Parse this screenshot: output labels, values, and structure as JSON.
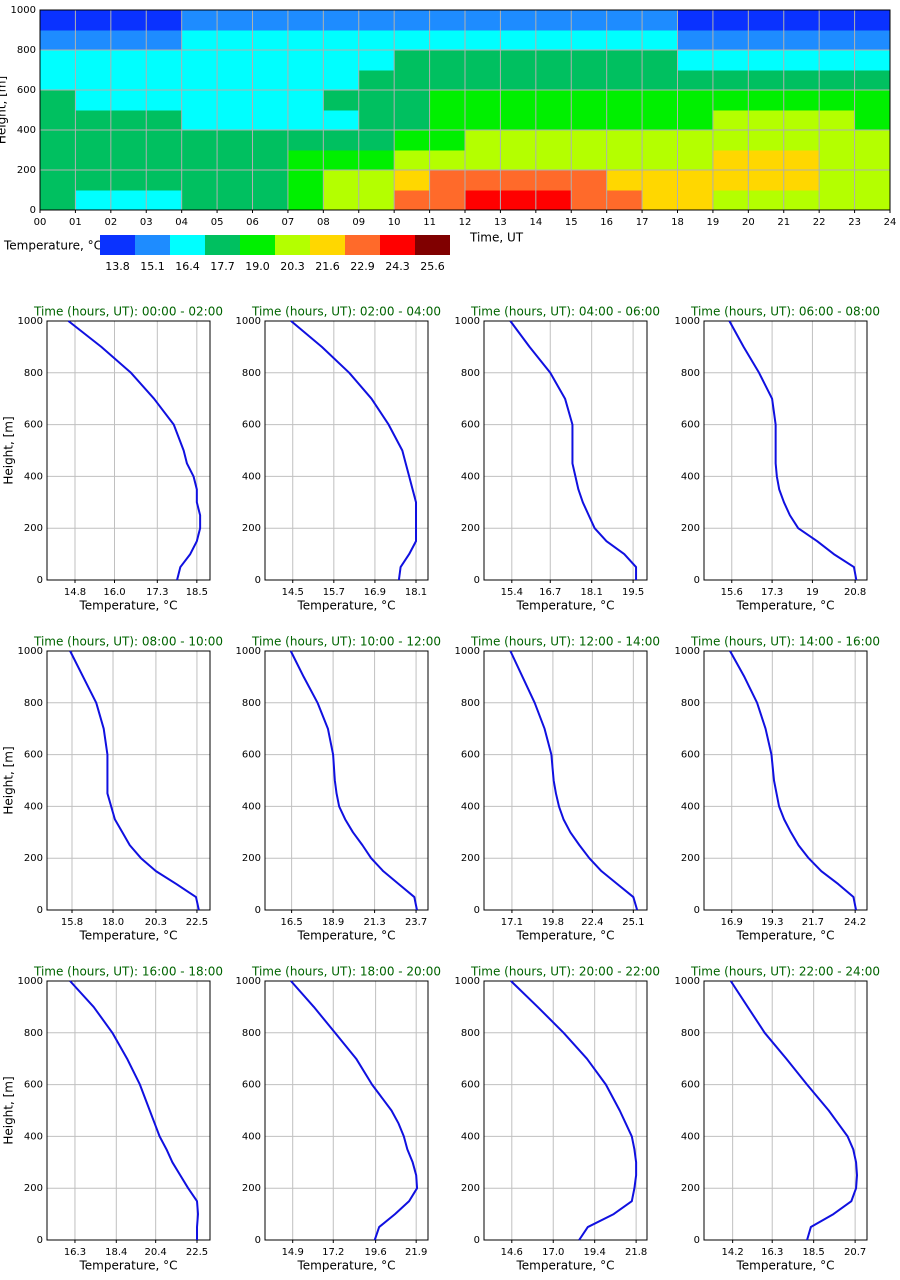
{
  "chart_data": [
    {
      "type": "heatmap",
      "xlabel": "Time, UT",
      "ylabel": "Height, [m]",
      "xlim": [
        0,
        24
      ],
      "ylim": [
        0,
        1000
      ],
      "xticks": [
        {
          "value": 0,
          "label": "00"
        },
        {
          "value": 1,
          "label": "01"
        },
        {
          "value": 2,
          "label": "02"
        },
        {
          "value": 3,
          "label": "03"
        },
        {
          "value": 4,
          "label": "04"
        },
        {
          "value": 5,
          "label": "05"
        },
        {
          "value": 6,
          "label": "06"
        },
        {
          "value": 7,
          "label": "07"
        },
        {
          "value": 8,
          "label": "08"
        },
        {
          "value": 9,
          "label": "09"
        },
        10,
        11,
        12,
        13,
        14,
        15,
        16,
        17,
        18,
        19,
        20,
        21,
        22,
        23,
        24
      ],
      "yticks": [
        0,
        200,
        400,
        600,
        800,
        1000
      ],
      "grid": true,
      "z": [
        [
          17.7,
          16.4,
          16.4,
          16.4,
          17.7,
          17.7,
          17.7,
          19.0,
          20.3,
          20.3,
          22.9,
          22.9,
          24.3,
          24.3,
          24.3,
          22.9,
          22.9,
          21.6,
          21.6,
          20.3,
          20.3,
          20.3,
          20.3,
          20.3
        ],
        [
          17.7,
          17.7,
          17.7,
          17.7,
          17.7,
          17.7,
          17.7,
          19.0,
          20.3,
          20.3,
          21.6,
          22.9,
          22.9,
          22.9,
          22.9,
          22.9,
          21.6,
          21.6,
          21.6,
          21.6,
          21.6,
          21.6,
          20.3,
          20.3
        ],
        [
          17.7,
          17.7,
          17.7,
          17.7,
          17.7,
          17.7,
          17.7,
          19.0,
          19.0,
          19.0,
          20.3,
          20.3,
          20.3,
          20.3,
          20.3,
          20.3,
          20.3,
          20.3,
          20.3,
          21.6,
          21.6,
          21.6,
          20.3,
          20.3
        ],
        [
          17.7,
          17.7,
          17.7,
          17.7,
          17.7,
          17.7,
          17.7,
          17.7,
          17.7,
          17.7,
          19.0,
          19.0,
          20.3,
          20.3,
          20.3,
          20.3,
          20.3,
          20.3,
          20.3,
          20.3,
          20.3,
          20.3,
          20.3,
          20.3
        ],
        [
          17.7,
          17.7,
          17.7,
          17.7,
          16.4,
          16.4,
          16.4,
          16.4,
          16.4,
          17.7,
          17.7,
          19.0,
          19.0,
          19.0,
          19.0,
          19.0,
          19.0,
          19.0,
          19.0,
          20.3,
          20.3,
          20.3,
          20.3,
          19.0
        ],
        [
          17.7,
          16.4,
          16.4,
          16.4,
          16.4,
          16.4,
          16.4,
          16.4,
          17.7,
          17.7,
          17.7,
          19.0,
          19.0,
          19.0,
          19.0,
          19.0,
          19.0,
          19.0,
          19.0,
          19.0,
          19.0,
          19.0,
          19.0,
          19.0
        ],
        [
          16.4,
          16.4,
          16.4,
          16.4,
          16.4,
          16.4,
          16.4,
          16.4,
          16.4,
          17.7,
          17.7,
          17.7,
          17.7,
          17.7,
          17.7,
          17.7,
          17.7,
          17.7,
          17.7,
          17.7,
          17.7,
          17.7,
          17.7,
          17.7
        ],
        [
          16.4,
          16.4,
          16.4,
          16.4,
          16.4,
          16.4,
          16.4,
          16.4,
          16.4,
          16.4,
          17.7,
          17.7,
          17.7,
          17.7,
          17.7,
          17.7,
          17.7,
          17.7,
          16.4,
          16.4,
          16.4,
          16.4,
          16.4,
          16.4
        ],
        [
          15.1,
          15.1,
          15.1,
          15.1,
          16.4,
          16.4,
          16.4,
          16.4,
          16.4,
          16.4,
          16.4,
          16.4,
          16.4,
          16.4,
          16.4,
          16.4,
          16.4,
          16.4,
          15.1,
          15.1,
          15.1,
          15.1,
          15.1,
          15.1
        ],
        [
          13.8,
          13.8,
          13.8,
          13.8,
          15.1,
          15.1,
          15.1,
          15.1,
          15.1,
          15.1,
          15.1,
          15.1,
          15.1,
          15.1,
          15.1,
          15.1,
          15.1,
          15.1,
          13.8,
          13.8,
          13.8,
          13.8,
          13.8,
          13.8
        ]
      ],
      "colorbar": {
        "label": "Temperature, °C",
        "levels": [
          13.8,
          15.1,
          16.4,
          17.7,
          19.0,
          20.3,
          21.6,
          22.9,
          24.3,
          25.6
        ],
        "level_labels": [
          "13.8",
          "15.1",
          "16.4",
          "17.7",
          "19.0",
          "20.3",
          "21.6",
          "22.9",
          "24.3",
          "25.6"
        ],
        "colors": [
          "#0a32ff",
          "#1e8cff",
          "#00ffff",
          "#00c060",
          "#00f000",
          "#b4ff00",
          "#ffd700",
          "#ff6a2a",
          "#ff0000",
          "#800000"
        ]
      }
    },
    {
      "type": "line",
      "title": "Time (hours, UT): 00:00 - 02:00",
      "xlabel": "Temperature, °C",
      "ylabel": "Height, [m]",
      "color": "#1010e0",
      "xlim": [
        13.95,
        18.9
      ],
      "xticks": [
        14.8,
        {
          "value": 16,
          "label": "16.0"
        },
        17.3,
        18.5
      ],
      "ylim": [
        0,
        1000
      ],
      "yticks": [
        0,
        200,
        400,
        600,
        800,
        1000
      ],
      "grid": true,
      "y": [
        0,
        50,
        100,
        150,
        200,
        250,
        300,
        350,
        400,
        450,
        500,
        600,
        700,
        800,
        900,
        1000
      ],
      "values": [
        17.9,
        18.0,
        18.3,
        18.5,
        18.6,
        18.6,
        18.5,
        18.5,
        18.4,
        18.2,
        18.1,
        17.8,
        17.2,
        16.5,
        15.6,
        14.6
      ]
    },
    {
      "type": "line",
      "title": "Time (hours, UT): 02:00 - 04:00",
      "xlabel": "Temperature, °C",
      "color": "#1010e0",
      "xlim": [
        13.69,
        18.45
      ],
      "xticks": [
        14.5,
        15.7,
        16.9,
        18.1
      ],
      "ylim": [
        0,
        1000
      ],
      "yticks": [
        0,
        200,
        400,
        600,
        800,
        1000
      ],
      "grid": true,
      "y": [
        0,
        50,
        100,
        150,
        200,
        250,
        300,
        350,
        400,
        450,
        500,
        600,
        700,
        800,
        900,
        1000
      ],
      "values": [
        17.6,
        17.65,
        17.9,
        18.1,
        18.1,
        18.1,
        18.1,
        18.0,
        17.9,
        17.8,
        17.7,
        17.3,
        16.8,
        16.15,
        15.35,
        14.45
      ]
    },
    {
      "type": "line",
      "title": "Time (hours, UT): 04:00 - 06:00",
      "xlabel": "Temperature, °C",
      "color": "#1010e0",
      "xlim": [
        14.46,
        19.97
      ],
      "xticks": [
        15.4,
        16.7,
        18.1,
        19.5
      ],
      "ylim": [
        0,
        1000
      ],
      "yticks": [
        0,
        200,
        400,
        600,
        800,
        1000
      ],
      "grid": true,
      "y": [
        0,
        50,
        100,
        150,
        200,
        250,
        300,
        350,
        400,
        450,
        500,
        600,
        700,
        800,
        900,
        1000
      ],
      "values": [
        19.6,
        19.6,
        19.2,
        18.6,
        18.2,
        18.0,
        17.8,
        17.65,
        17.55,
        17.45,
        17.45,
        17.45,
        17.2,
        16.7,
        16.0,
        15.35
      ]
    },
    {
      "type": "line",
      "title": "Time (hours, UT): 06:00 - 08:00",
      "xlabel": "Temperature, °C",
      "color": "#1010e0",
      "xlim": [
        14.43,
        21.3
      ],
      "xticks": [
        15.6,
        17.3,
        19.0,
        20.8
      ],
      "ylim": [
        0,
        1000
      ],
      "yticks": [
        0,
        200,
        400,
        600,
        800,
        1000
      ],
      "grid": true,
      "y": [
        0,
        50,
        100,
        150,
        200,
        250,
        300,
        350,
        400,
        450,
        500,
        600,
        700,
        800,
        900,
        1000
      ],
      "values": [
        20.85,
        20.75,
        19.9,
        19.2,
        18.4,
        18.05,
        17.8,
        17.6,
        17.5,
        17.45,
        17.45,
        17.45,
        17.3,
        16.75,
        16.1,
        15.5
      ]
    },
    {
      "type": "line",
      "title": "Time (hours, UT): 08:00 - 10:00",
      "xlabel": "Temperature, °C",
      "ylabel": "Height, [m]",
      "color": "#1010e0",
      "xlim": [
        14.46,
        23.2
      ],
      "xticks": [
        15.8,
        {
          "value": 18,
          "label": "18.0"
        },
        20.3,
        22.5
      ],
      "ylim": [
        0,
        1000
      ],
      "yticks": [
        0,
        200,
        400,
        600,
        800,
        1000
      ],
      "grid": true,
      "y": [
        0,
        50,
        100,
        150,
        200,
        250,
        300,
        350,
        400,
        450,
        500,
        600,
        700,
        800,
        900,
        1000
      ],
      "values": [
        22.6,
        22.45,
        21.4,
        20.3,
        19.5,
        18.9,
        18.5,
        18.1,
        17.9,
        17.7,
        17.7,
        17.7,
        17.5,
        17.1,
        16.4,
        15.7
      ]
    },
    {
      "type": "line",
      "title": "Time (hours, UT): 10:00 - 12:00",
      "xlabel": "Temperature, °C",
      "color": "#1010e0",
      "xlim": [
        14.96,
        24.39
      ],
      "xticks": [
        16.5,
        18.9,
        21.3,
        23.7
      ],
      "ylim": [
        0,
        1000
      ],
      "yticks": [
        0,
        200,
        400,
        600,
        800,
        1000
      ],
      "grid": true,
      "y": [
        0,
        50,
        100,
        150,
        200,
        250,
        300,
        350,
        400,
        450,
        500,
        600,
        700,
        800,
        900,
        1000
      ],
      "values": [
        23.75,
        23.6,
        22.7,
        21.8,
        21.1,
        20.6,
        20.05,
        19.6,
        19.25,
        19.1,
        19.0,
        18.9,
        18.6,
        18.0,
        17.2,
        16.45
      ]
    },
    {
      "type": "line",
      "title": "Time (hours, UT): 12:00 - 14:00",
      "xlabel": "Temperature, °C",
      "color": "#1010e0",
      "xlim": [
        15.26,
        26.0
      ],
      "xticks": [
        17.1,
        19.8,
        22.4,
        25.1
      ],
      "ylim": [
        0,
        1000
      ],
      "yticks": [
        0,
        200,
        400,
        600,
        800,
        1000
      ],
      "grid": true,
      "y": [
        0,
        50,
        100,
        150,
        200,
        250,
        300,
        350,
        400,
        450,
        500,
        600,
        700,
        800,
        900,
        1000
      ],
      "values": [
        25.35,
        25.1,
        24.05,
        23.0,
        22.2,
        21.55,
        20.95,
        20.5,
        20.2,
        20.0,
        19.85,
        19.7,
        19.25,
        18.6,
        17.8,
        17.0
      ]
    },
    {
      "type": "line",
      "title": "Time (hours, UT): 14:00 - 16:00",
      "xlabel": "Temperature, °C",
      "color": "#1010e0",
      "xlim": [
        15.26,
        24.9
      ],
      "xticks": [
        16.9,
        19.3,
        21.7,
        24.2
      ],
      "ylim": [
        0,
        1000
      ],
      "yticks": [
        0,
        200,
        400,
        600,
        800,
        1000
      ],
      "grid": true,
      "y": [
        0,
        50,
        100,
        150,
        200,
        250,
        300,
        350,
        400,
        450,
        500,
        600,
        700,
        800,
        900,
        1000
      ],
      "values": [
        24.25,
        24.1,
        23.2,
        22.2,
        21.45,
        20.85,
        20.4,
        20.0,
        19.7,
        19.55,
        19.4,
        19.25,
        18.9,
        18.4,
        17.65,
        16.8
      ]
    },
    {
      "type": "line",
      "title": "Time (hours, UT): 16:00 - 18:00",
      "xlabel": "Temperature, °C",
      "ylabel": "Height, [m]",
      "color": "#1010e0",
      "xlim": [
        14.88,
        23.16
      ],
      "xticks": [
        16.3,
        18.4,
        20.4,
        22.5
      ],
      "ylim": [
        0,
        1000
      ],
      "yticks": [
        0,
        200,
        400,
        600,
        800,
        1000
      ],
      "grid": true,
      "y": [
        0,
        50,
        100,
        150,
        200,
        250,
        300,
        350,
        400,
        450,
        500,
        600,
        700,
        800,
        900,
        1000
      ],
      "values": [
        22.5,
        22.5,
        22.55,
        22.5,
        22.05,
        21.65,
        21.25,
        20.95,
        20.6,
        20.35,
        20.1,
        19.6,
        18.95,
        18.2,
        17.25,
        16.05
      ]
    },
    {
      "type": "line",
      "title": "Time (hours, UT): 18:00 - 20:00",
      "xlabel": "Temperature, °C",
      "color": "#1010e0",
      "xlim": [
        13.33,
        22.57
      ],
      "xticks": [
        14.9,
        17.2,
        19.6,
        21.9
      ],
      "ylim": [
        0,
        1000
      ],
      "yticks": [
        0,
        200,
        400,
        600,
        800,
        1000
      ],
      "grid": true,
      "y": [
        0,
        50,
        100,
        150,
        200,
        250,
        300,
        350,
        400,
        450,
        500,
        600,
        700,
        800,
        900,
        1000
      ],
      "values": [
        19.55,
        19.8,
        20.7,
        21.5,
        21.95,
        21.9,
        21.7,
        21.4,
        21.2,
        20.9,
        20.5,
        19.4,
        18.5,
        17.3,
        16.1,
        14.8
      ]
    },
    {
      "type": "line",
      "title": "Time (hours, UT): 20:00 - 22:00",
      "xlabel": "Temperature, °C",
      "color": "#1010e0",
      "xlim": [
        12.99,
        22.43
      ],
      "xticks": [
        14.6,
        {
          "value": 17,
          "label": "17.0"
        },
        19.4,
        21.8
      ],
      "ylim": [
        0,
        1000
      ],
      "yticks": [
        0,
        200,
        400,
        600,
        800,
        1000
      ],
      "grid": true,
      "y": [
        0,
        50,
        100,
        150,
        200,
        250,
        300,
        350,
        400,
        450,
        500,
        600,
        700,
        800,
        900,
        1000
      ],
      "values": [
        18.5,
        19.0,
        20.5,
        21.55,
        21.7,
        21.8,
        21.8,
        21.7,
        21.55,
        21.2,
        20.85,
        20.05,
        18.95,
        17.6,
        16.1,
        14.55
      ]
    },
    {
      "type": "line",
      "title": "Time (hours, UT): 22:00 - 24:00",
      "xlabel": "Temperature, °C",
      "color": "#1010e0",
      "xlim": [
        12.68,
        21.33
      ],
      "xticks": [
        14.2,
        16.3,
        18.5,
        20.7
      ],
      "ylim": [
        0,
        1000
      ],
      "yticks": [
        0,
        200,
        400,
        600,
        800,
        1000
      ],
      "grid": true,
      "y": [
        0,
        50,
        100,
        150,
        200,
        250,
        300,
        350,
        400,
        450,
        500,
        600,
        700,
        800,
        900,
        1000
      ],
      "values": [
        18.15,
        18.35,
        19.55,
        20.5,
        20.75,
        20.8,
        20.75,
        20.6,
        20.3,
        19.8,
        19.3,
        18.15,
        17.05,
        15.9,
        15.0,
        14.1
      ]
    }
  ]
}
